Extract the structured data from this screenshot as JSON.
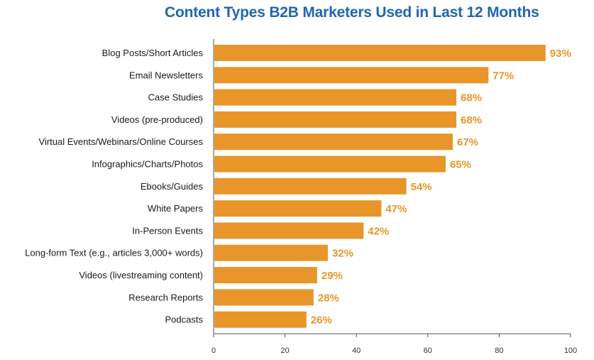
{
  "chart_data": {
    "type": "bar",
    "orientation": "horizontal",
    "title": "Content Types B2B Marketers Used in Last 12 Months",
    "categories": [
      "Blog Posts/Short Articles",
      "Email Newsletters",
      "Case Studies",
      "Videos (pre-produced)",
      "Virtual Events/Webinars/Online Courses",
      "Infographics/Charts/Photos",
      "Ebooks/Guides",
      "White Papers",
      "In-Person Events",
      "Long-form Text (e.g., articles 3,000+ words)",
      "Videos (livestreaming content)",
      "Research Reports",
      "Podcasts"
    ],
    "values": [
      93,
      77,
      68,
      68,
      67,
      65,
      54,
      47,
      42,
      32,
      29,
      28,
      26
    ],
    "value_labels": [
      "93%",
      "77%",
      "68%",
      "68%",
      "67%",
      "65%",
      "54%",
      "47%",
      "42%",
      "32%",
      "29%",
      "28%",
      "26%"
    ],
    "xlim": [
      0,
      100
    ],
    "xticks": [
      0,
      20,
      40,
      60,
      80,
      100
    ],
    "xlabel": "",
    "ylabel": "",
    "grid": false,
    "legend": "none"
  },
  "colors": {
    "bar": "#E8962A",
    "value_label": "#E8962A",
    "title": "#2166AE",
    "axis": "#555555"
  }
}
